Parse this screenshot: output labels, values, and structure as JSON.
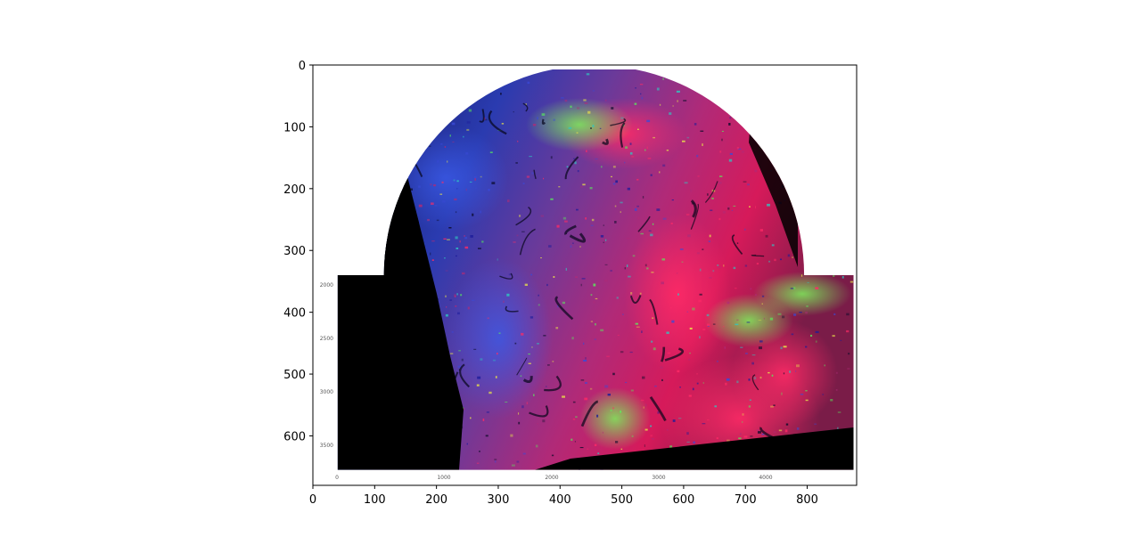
{
  "chart_data": {
    "type": "heatmap",
    "title": "",
    "xlabel": "",
    "ylabel": "",
    "xlim": [
      0,
      880
    ],
    "ylim": [
      680,
      0
    ],
    "grid": false,
    "x_ticks": [
      0,
      100,
      200,
      300,
      400,
      500,
      600,
      700,
      800
    ],
    "y_ticks": [
      0,
      100,
      200,
      300,
      400,
      500,
      600
    ],
    "image": {
      "description_colormap": [
        "#000000",
        "#1b1b9a",
        "#3a49d8",
        "#2fc7c2",
        "#58f25a",
        "#e8e24a",
        "#d23b84",
        "#ff1f55"
      ],
      "upper_region": {
        "shape": "half-disk",
        "center_x": 455,
        "center_y": 340,
        "radius": 340
      },
      "lower_region": {
        "shape": "rectangle",
        "x": [
          40,
          875
        ],
        "y": [
          340,
          655
        ]
      }
    },
    "inset_axes": {
      "x_ticks": [
        0,
        1000,
        2000,
        3000,
        4000
      ],
      "y_ticks": [
        2000,
        2500,
        3000,
        3500
      ]
    }
  }
}
